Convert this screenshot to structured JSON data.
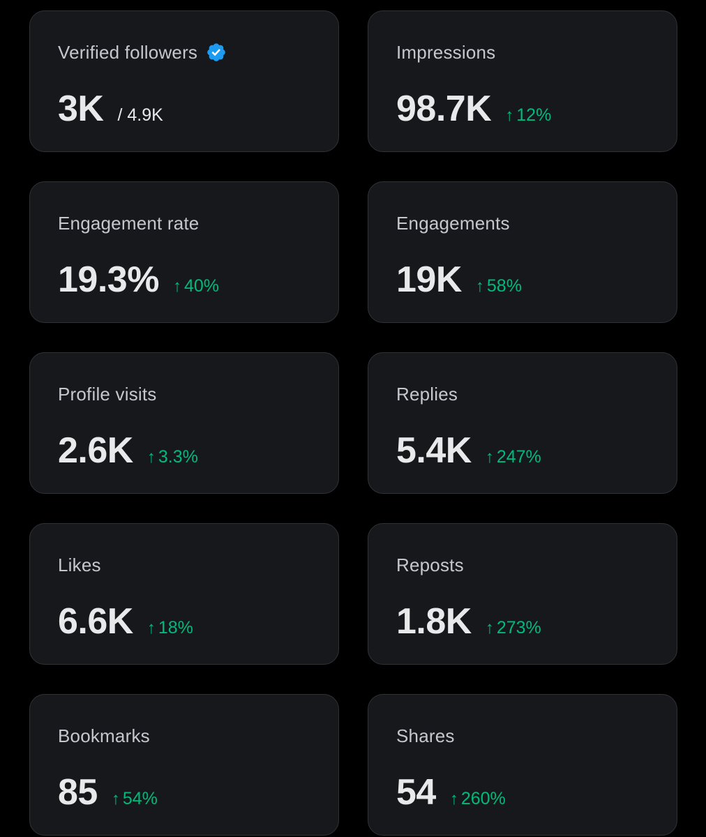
{
  "colors": {
    "background": "#000000",
    "card": "#16181c",
    "border": "#2f3336",
    "label": "#c4c8cc",
    "value": "#e7e9ea",
    "positive": "#00ba7c",
    "verified": "#1d9bf0"
  },
  "cards": [
    {
      "label": "Verified followers",
      "icon": "verified-badge-icon",
      "value": "3K",
      "total": "/ 4.9K"
    },
    {
      "label": "Impressions",
      "value": "98.7K",
      "change": "12%",
      "change_icon": "arrow-up-icon"
    },
    {
      "label": "Engagement rate",
      "value": "19.3%",
      "change": "40%",
      "change_icon": "arrow-up-icon"
    },
    {
      "label": "Engagements",
      "value": "19K",
      "change": "58%",
      "change_icon": "arrow-up-icon"
    },
    {
      "label": "Profile visits",
      "value": "2.6K",
      "change": "3.3%",
      "change_icon": "arrow-up-icon"
    },
    {
      "label": "Replies",
      "value": "5.4K",
      "change": "247%",
      "change_icon": "arrow-up-icon"
    },
    {
      "label": "Likes",
      "value": "6.6K",
      "change": "18%",
      "change_icon": "arrow-up-icon"
    },
    {
      "label": "Reposts",
      "value": "1.8K",
      "change": "273%",
      "change_icon": "arrow-up-icon"
    },
    {
      "label": "Bookmarks",
      "value": "85",
      "change": "54%",
      "change_icon": "arrow-up-icon"
    },
    {
      "label": "Shares",
      "value": "54",
      "change": "260%",
      "change_icon": "arrow-up-icon"
    }
  ]
}
